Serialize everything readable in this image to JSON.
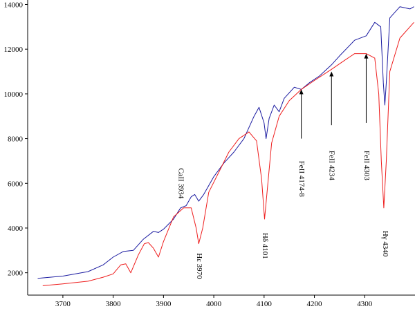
{
  "chart_data": {
    "type": "line",
    "title": "",
    "xlabel": "",
    "ylabel": "",
    "xlim": [
      3630,
      4400
    ],
    "ylim": [
      1000,
      14200
    ],
    "xticks": [
      3700,
      3800,
      3900,
      4000,
      4100,
      4200,
      4300
    ],
    "yticks": [
      2000,
      4000,
      6000,
      8000,
      10000,
      12000,
      14000
    ],
    "grid": false,
    "legend": "none",
    "colors": {
      "series1": "#1a1aa0",
      "series2": "#ee1c1c",
      "axis": "#000000"
    },
    "series": [
      {
        "color": "#1a1aa0",
        "points": [
          [
            3650,
            1750
          ],
          [
            3700,
            1850
          ],
          [
            3750,
            2050
          ],
          [
            3780,
            2350
          ],
          [
            3800,
            2700
          ],
          [
            3820,
            2950
          ],
          [
            3840,
            3000
          ],
          [
            3860,
            3500
          ],
          [
            3880,
            3850
          ],
          [
            3890,
            3800
          ],
          [
            3900,
            3950
          ],
          [
            3920,
            4400
          ],
          [
            3934,
            4900
          ],
          [
            3945,
            5000
          ],
          [
            3955,
            5400
          ],
          [
            3962,
            5500
          ],
          [
            3970,
            5200
          ],
          [
            3980,
            5500
          ],
          [
            4000,
            6300
          ],
          [
            4020,
            6900
          ],
          [
            4040,
            7400
          ],
          [
            4060,
            8000
          ],
          [
            4080,
            9000
          ],
          [
            4090,
            9400
          ],
          [
            4100,
            8700
          ],
          [
            4104,
            8000
          ],
          [
            4110,
            8900
          ],
          [
            4120,
            9500
          ],
          [
            4130,
            9200
          ],
          [
            4140,
            9800
          ],
          [
            4160,
            10300
          ],
          [
            4174,
            10200
          ],
          [
            4190,
            10500
          ],
          [
            4210,
            10800
          ],
          [
            4234,
            11300
          ],
          [
            4250,
            11700
          ],
          [
            4280,
            12400
          ],
          [
            4303,
            12600
          ],
          [
            4320,
            13200
          ],
          [
            4332,
            13000
          ],
          [
            4337,
            10500
          ],
          [
            4340,
            9500
          ],
          [
            4343,
            10500
          ],
          [
            4350,
            13400
          ],
          [
            4370,
            13900
          ],
          [
            4390,
            13800
          ],
          [
            4398,
            13900
          ]
        ]
      },
      {
        "color": "#ee1c1c",
        "points": [
          [
            3660,
            1420
          ],
          [
            3700,
            1500
          ],
          [
            3750,
            1620
          ],
          [
            3780,
            1800
          ],
          [
            3800,
            1950
          ],
          [
            3815,
            2350
          ],
          [
            3825,
            2400
          ],
          [
            3835,
            2000
          ],
          [
            3850,
            2800
          ],
          [
            3862,
            3300
          ],
          [
            3870,
            3350
          ],
          [
            3880,
            3100
          ],
          [
            3890,
            2700
          ],
          [
            3900,
            3400
          ],
          [
            3920,
            4500
          ],
          [
            3940,
            4900
          ],
          [
            3955,
            4900
          ],
          [
            3965,
            4000
          ],
          [
            3970,
            3300
          ],
          [
            3978,
            4000
          ],
          [
            3990,
            5600
          ],
          [
            4010,
            6500
          ],
          [
            4030,
            7400
          ],
          [
            4050,
            8000
          ],
          [
            4070,
            8300
          ],
          [
            4085,
            7900
          ],
          [
            4095,
            6200
          ],
          [
            4101,
            4400
          ],
          [
            4108,
            6100
          ],
          [
            4115,
            7800
          ],
          [
            4130,
            9000
          ],
          [
            4150,
            9700
          ],
          [
            4174,
            10200
          ],
          [
            4200,
            10600
          ],
          [
            4234,
            11100
          ],
          [
            4260,
            11500
          ],
          [
            4280,
            11800
          ],
          [
            4303,
            11800
          ],
          [
            4320,
            11600
          ],
          [
            4328,
            10000
          ],
          [
            4333,
            7000
          ],
          [
            4338,
            4900
          ],
          [
            4343,
            7000
          ],
          [
            4350,
            11000
          ],
          [
            4370,
            12500
          ],
          [
            4390,
            13000
          ],
          [
            4398,
            13200
          ]
        ]
      }
    ],
    "annotations": [
      {
        "text": "CaII 3934",
        "x": 3934,
        "y": 6000,
        "rotate": 90,
        "arrow": false
      },
      {
        "text": "Hε 3970",
        "x": 3970,
        "y": 2300,
        "rotate": 90,
        "arrow": false
      },
      {
        "text": "Hδ 4101",
        "x": 4101,
        "y": 3200,
        "rotate": 90,
        "arrow": false
      },
      {
        "text": "FeII 4174-8",
        "x": 4174,
        "y": 6200,
        "rotate": 90,
        "arrow": true,
        "arrow_from": 8000,
        "arrow_to": 10200
      },
      {
        "text": "FeII 4234",
        "x": 4234,
        "y": 6800,
        "rotate": 90,
        "arrow": true,
        "arrow_from": 8600,
        "arrow_to": 11000
      },
      {
        "text": "FeII 4303",
        "x": 4303,
        "y": 6800,
        "rotate": 90,
        "arrow": true,
        "arrow_from": 8700,
        "arrow_to": 11800
      },
      {
        "text": "Hγ 4340",
        "x": 4340,
        "y": 3300,
        "rotate": 90,
        "arrow": false
      }
    ]
  }
}
